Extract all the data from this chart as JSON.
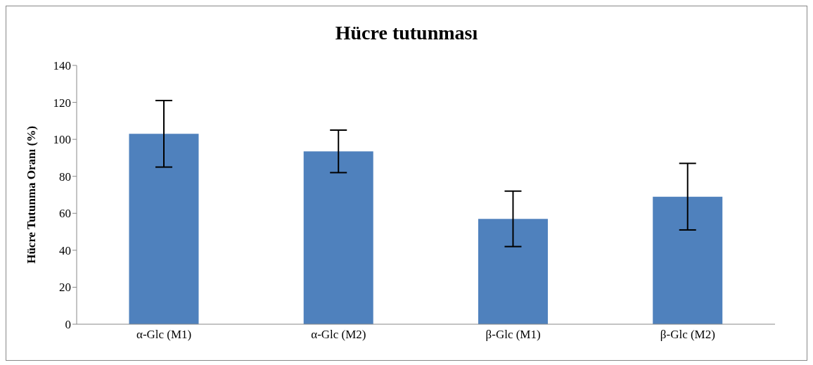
{
  "chart_data": {
    "type": "bar",
    "title": "Hücre tutunması",
    "ylabel": "Hücre Tutunma Oranı (%)",
    "categories": [
      "α-Glc (M1)",
      "α-Glc (M2)",
      "β-Glc (M1)",
      "β-Glc (M2)"
    ],
    "values": [
      103,
      93.5,
      57,
      69
    ],
    "errors": [
      18,
      11.5,
      15,
      18
    ],
    "color": "#4f81bd",
    "ylim": [
      0,
      140
    ],
    "yticks": [
      0,
      20,
      40,
      60,
      80,
      100,
      120,
      140
    ]
  }
}
